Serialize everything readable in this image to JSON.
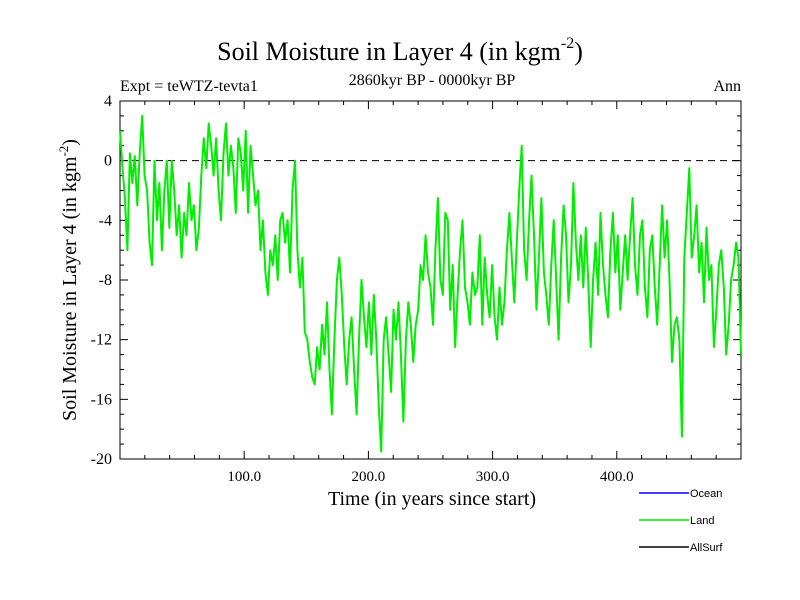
{
  "chart_data": {
    "type": "line",
    "title": "Soil Moisture in Layer 4 (in kgm",
    "title_sup": "-2",
    "title_close": ")",
    "subtitle": "2860kyr BP - 0000kyr BP",
    "expt_label": "Expt = teWTZ-tevta1",
    "season_label": "Ann",
    "xlabel": "Time (in years since start)",
    "ylabel": "Soil Moisture in Layer 4 (in kgm",
    "ylabel_sup": "-2",
    "ylabel_close": ")",
    "xlim": [
      0,
      500
    ],
    "ylim": [
      -20,
      4
    ],
    "x_ticks": [
      100,
      200,
      300,
      400
    ],
    "x_tick_labels": [
      "100.0",
      "200.0",
      "300.0",
      "400.0"
    ],
    "y_ticks": [
      4,
      0,
      -4,
      -8,
      -12,
      -16,
      -20
    ],
    "y_tick_labels": [
      "4",
      "0",
      "-4",
      "-8",
      "-12",
      "-16",
      "-20"
    ],
    "reference_line": 0,
    "legend": [
      {
        "name": "Ocean",
        "color": "#0000ff"
      },
      {
        "name": "Land",
        "color": "#00ee00"
      },
      {
        "name": "AllSurf",
        "color": "#000000"
      }
    ],
    "series": [
      {
        "name": "Land",
        "color": "#00ee00",
        "x_start": 0,
        "x_end": 500,
        "values": [
          2.0,
          -0.5,
          -2.5,
          -6.0,
          0.5,
          -1.5,
          0.3,
          -3.0,
          0.5,
          3.0,
          -1.0,
          -2.0,
          -5.5,
          -7.0,
          0.0,
          -4.0,
          -1.5,
          -6.0,
          -2.0,
          0.0,
          -4.5,
          0.0,
          -2.0,
          -5.0,
          -3.0,
          -6.5,
          -3.5,
          -5.0,
          -1.5,
          -4.0,
          -3.0,
          -6.0,
          -4.5,
          -1.0,
          1.5,
          -0.5,
          2.5,
          1.0,
          -1.0,
          1.5,
          -2.0,
          -4.0,
          0.5,
          2.5,
          -1.0,
          1.0,
          -0.5,
          -3.5,
          1.5,
          0.5,
          -2.0,
          2.0,
          -3.5,
          1.0,
          -1.0,
          -3.0,
          -2.0,
          -6.0,
          -4.0,
          -7.5,
          -9.0,
          -6.0,
          -7.0,
          -5.0,
          -8.0,
          -4.0,
          -3.5,
          -5.5,
          -4.0,
          -7.5,
          -2.0,
          0.0,
          -6.0,
          -8.5,
          -6.5,
          -11.5,
          -12.0,
          -13.5,
          -14.5,
          -15.0,
          -12.5,
          -14.0,
          -11.0,
          -13.0,
          -9.5,
          -14.0,
          -17.0,
          -12.0,
          -8.0,
          -6.5,
          -9.0,
          -12.5,
          -15.0,
          -12.0,
          -10.5,
          -14.0,
          -17.0,
          -12.0,
          -8.0,
          -10.5,
          -12.5,
          -9.5,
          -13.0,
          -9.0,
          -12.0,
          -16.5,
          -19.5,
          -12.0,
          -10.5,
          -13.0,
          -15.5,
          -10.0,
          -12.0,
          -9.5,
          -13.0,
          -17.5,
          -12.0,
          -9.5,
          -11.0,
          -13.5,
          -11.0,
          -10.0,
          -7.0,
          -8.0,
          -5.0,
          -7.5,
          -8.5,
          -11.0,
          -6.0,
          -2.5,
          -8.0,
          -9.0,
          -3.5,
          -4.0,
          -10.0,
          -7.0,
          -12.5,
          -9.0,
          -6.0,
          -4.0,
          -8.5,
          -9.5,
          -11.0,
          -7.5,
          -9.0,
          -8.5,
          -5.0,
          -11.0,
          -6.5,
          -9.0,
          -10.5,
          -7.0,
          -10.5,
          -12.0,
          -8.5,
          -11.0,
          -9.5,
          -6.0,
          -3.5,
          -6.5,
          -9.5,
          -5.5,
          -2.0,
          1.0,
          -6.0,
          -8.0,
          -4.0,
          -1.0,
          -5.0,
          -10.0,
          -6.5,
          -2.5,
          -7.5,
          -9.0,
          -11.0,
          -7.0,
          -4.0,
          -8.0,
          -12.0,
          -6.5,
          -3.0,
          -5.0,
          -9.5,
          -7.0,
          -1.5,
          -5.5,
          -8.0,
          -5.0,
          -8.5,
          -4.5,
          -8.0,
          -12.5,
          -8.0,
          -5.5,
          -9.0,
          -3.5,
          -7.0,
          -9.0,
          -10.5,
          -6.0,
          -3.5,
          -7.5,
          -5.0,
          -10.0,
          -7.5,
          -5.0,
          -8.0,
          -5.0,
          -2.5,
          -7.0,
          -9.0,
          -5.0,
          -4.0,
          -8.5,
          -10.5,
          -6.0,
          -5.0,
          -8.5,
          -11.0,
          -7.0,
          -3.0,
          -6.5,
          -4.0,
          -8.0,
          -13.5,
          -11.0,
          -10.5,
          -12.0,
          -18.5,
          -6.5,
          -3.5,
          -0.5,
          -6.5,
          -5.0,
          -3.0,
          -7.5,
          -5.5,
          -9.5,
          -4.5,
          -8.0,
          -7.0,
          -12.5,
          -10.0,
          -7.0,
          -6.0,
          -8.5,
          -13.0,
          -11.0,
          -8.0,
          -7.0,
          -5.5,
          -6.5,
          -13.0
        ]
      }
    ]
  }
}
